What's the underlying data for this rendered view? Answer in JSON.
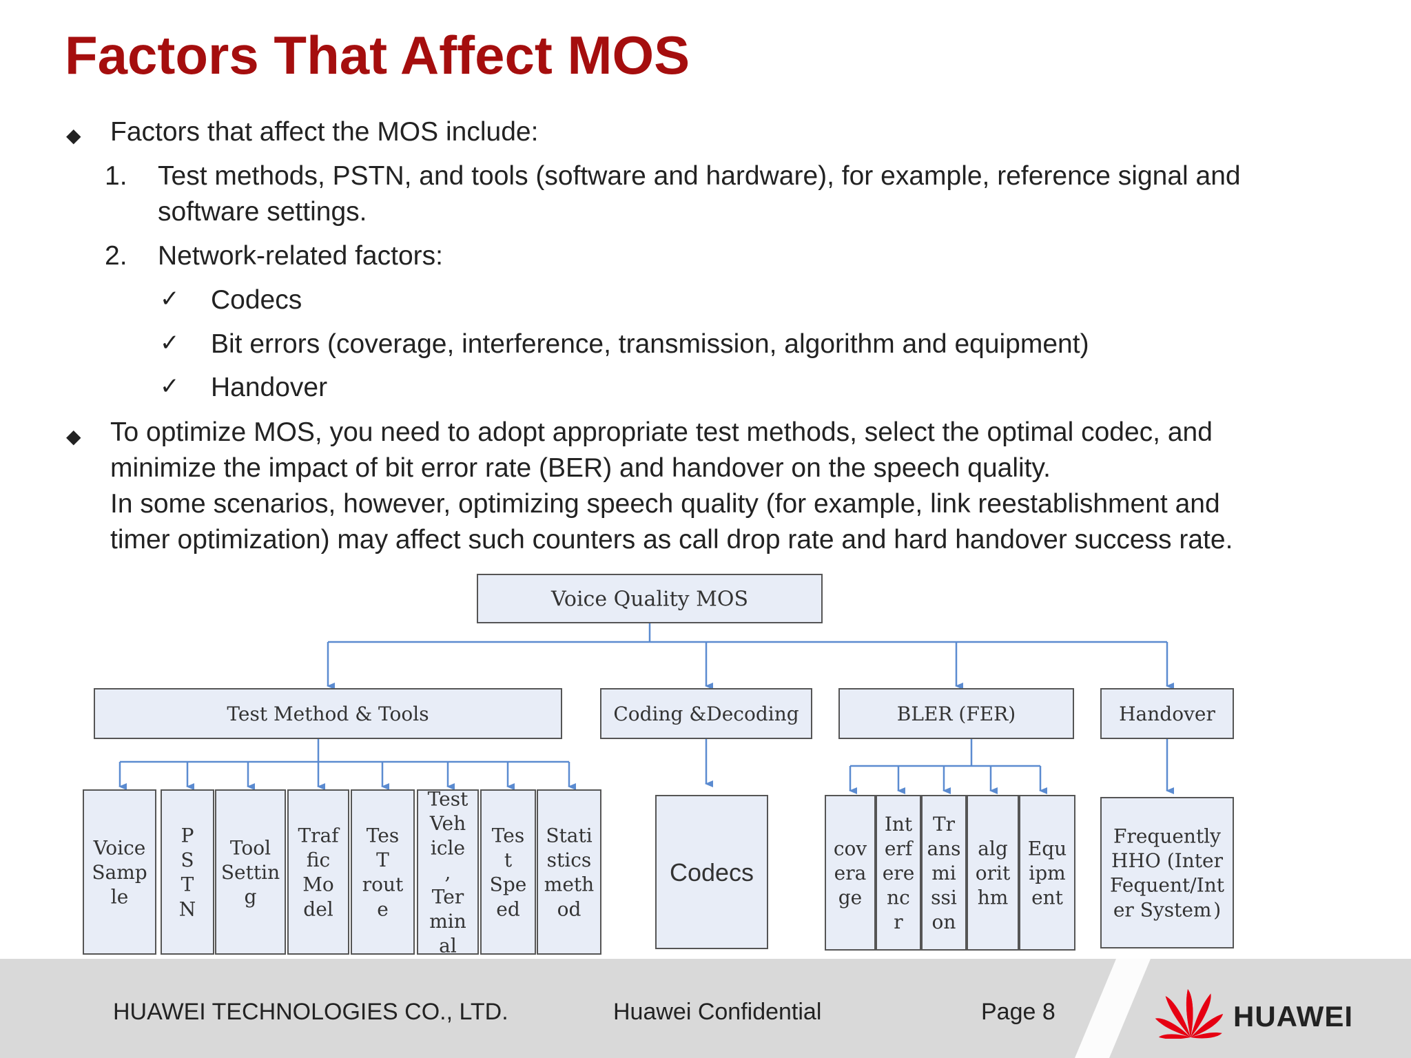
{
  "title": "Factors That Affect MOS",
  "content": {
    "bullet1": "Factors that affect the MOS include:",
    "item1_num": "1.",
    "item1_line1": "Test methods, PSTN, and tools (software and hardware), for example, reference signal and",
    "item1_line2": "software settings.",
    "item2_num": "2.",
    "item2_text": "Network-related factors:",
    "checks": [
      "Codecs",
      "Bit errors (coverage, interference, transmission, algorithm and equipment)",
      "Handover"
    ],
    "bullet2_lines": [
      "To optimize MOS, you need to adopt appropriate test methods, select the optimal codec, and",
      "minimize the impact of bit error rate (BER) and handover on the speech quality.",
      "In some scenarios, however, optimizing speech quality (for example, link reestablishment and",
      "timer optimization) may affect such counters as call drop rate and hard handover success rate."
    ]
  },
  "diagram": {
    "root": "Voice  Quality MOS",
    "level1": [
      "Test Method & Tools",
      "Coding &Decoding",
      "BLER (FER)",
      "Handover"
    ],
    "test_leaves": [
      [
        "Voice",
        "Samp",
        "le"
      ],
      [
        "P",
        "S",
        "T",
        "N"
      ],
      [
        "Tool",
        "Settin",
        "g"
      ],
      [
        "Traf",
        "fic",
        "Mo",
        "del"
      ],
      [
        "Tes",
        "T",
        "rout",
        "e"
      ],
      [
        "Test",
        "Veh",
        "icle",
        ",",
        "Ter",
        "min",
        "al"
      ],
      [
        "Tes",
        "t",
        "Spe",
        "ed"
      ],
      [
        "Stati",
        "stics",
        "meth",
        "od"
      ]
    ],
    "codec_leaf": "Codecs",
    "bler_leaves": [
      [
        "cov",
        "era",
        "ge"
      ],
      [
        "Int",
        "erf",
        "ere",
        "nc",
        "r"
      ],
      [
        "Tr",
        "ans",
        "mi",
        "ssi",
        "on"
      ],
      [
        "alg",
        "orit",
        "hm"
      ],
      [
        "Equ",
        "ipm",
        "ent"
      ]
    ],
    "handover_leaf": [
      "Frequently",
      "HHO (Inter",
      "Fequent/Int",
      "er System )"
    ]
  },
  "footer": {
    "company": "HUAWEI TECHNOLOGIES CO., LTD.",
    "confidential": "Huawei Confidential",
    "page": "Page 8",
    "logo_text": "HUAWEI"
  },
  "colors": {
    "title": "#a50e0e",
    "box_fill": "#e8edf7",
    "line": "#5b8bd0",
    "logo_red": "#e60012"
  }
}
